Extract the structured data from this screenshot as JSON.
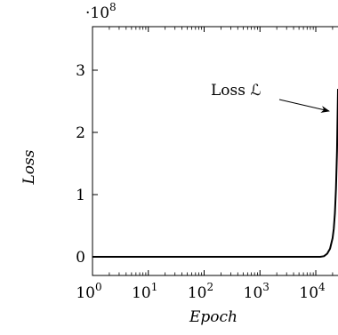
{
  "chart_data": {
    "type": "line",
    "xlabel": "Epoch",
    "ylabel": "Loss",
    "x_scale": "log",
    "xlim": [
      1,
      25000
    ],
    "ylim": [
      -30000000,
      370000000
    ],
    "y_multiplier": {
      "base": "·10",
      "exponent": "8"
    },
    "x_ticks": [
      {
        "value": 1,
        "base": "10",
        "exponent": "0"
      },
      {
        "value": 10,
        "base": "10",
        "exponent": "1"
      },
      {
        "value": 100,
        "base": "10",
        "exponent": "2"
      },
      {
        "value": 1000,
        "base": "10",
        "exponent": "3"
      },
      {
        "value": 10000,
        "base": "10",
        "exponent": "4"
      }
    ],
    "y_ticks": [
      {
        "value": 0,
        "label": "0"
      },
      {
        "value": 100000000,
        "label": "1"
      },
      {
        "value": 200000000,
        "label": "2"
      },
      {
        "value": 300000000,
        "label": "3"
      }
    ],
    "series": [
      {
        "name": "Loss ℒ",
        "color": "#000000",
        "x": [
          1,
          10,
          100,
          1000,
          5000,
          10000,
          12000,
          14000,
          16000,
          18000,
          20000,
          21000,
          22000,
          23000,
          24000,
          25000
        ],
        "y": [
          0,
          0,
          0,
          0,
          0,
          0,
          0,
          1000000,
          5000000,
          13000000,
          30000000,
          45000000,
          70000000,
          110000000,
          170000000,
          270000000
        ]
      }
    ],
    "annotations": [
      {
        "text": "Loss ℒ",
        "points_to": {
          "x": 25000,
          "y": 227000000
        }
      }
    ],
    "grid": false,
    "legend": "none"
  }
}
